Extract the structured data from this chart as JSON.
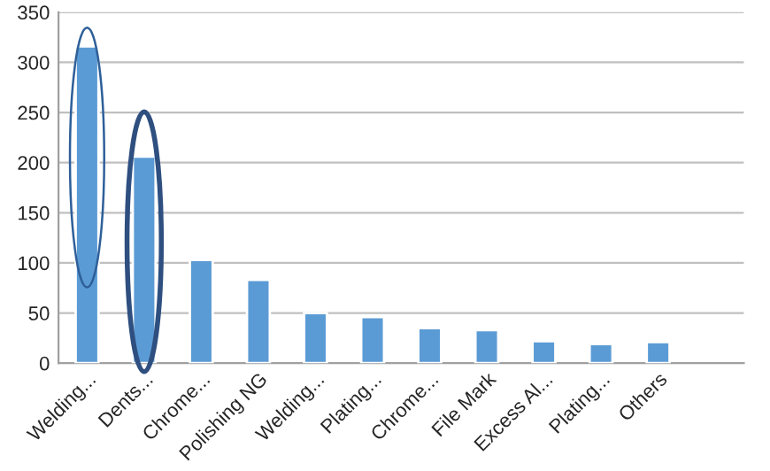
{
  "chart_data": {
    "type": "bar",
    "categories": [
      "Welding...",
      "Dents...",
      "Chrome...",
      "Polishing NG",
      "Welding...",
      "Plating...",
      "Chrome...",
      "File Mark",
      "Excess Al...",
      "Plating...",
      "Others",
      null
    ],
    "values": [
      316,
      206,
      103,
      83,
      50,
      46,
      35,
      33,
      22,
      19,
      21,
      null
    ],
    "color": "#5b9bd5",
    "ylim": [
      0,
      350
    ],
    "yticks": [
      0,
      50,
      100,
      150,
      200,
      250,
      300,
      350
    ],
    "grid": "y",
    "legend": false
  }
}
